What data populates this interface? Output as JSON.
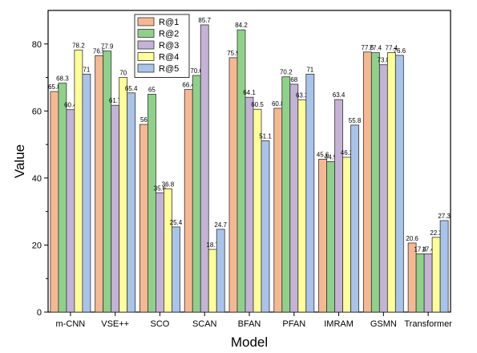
{
  "chart_data": {
    "type": "bar",
    "xlabel": "Model",
    "ylabel": "Value",
    "ylim": [
      0,
      90
    ],
    "yticks": [
      0,
      20,
      40,
      60,
      80
    ],
    "legend_position": "top-center",
    "categories": [
      "m-CNN",
      "VSE++",
      "SCO",
      "SCAN",
      "BFAN",
      "PFAN",
      "IMRAM",
      "GSMN",
      "Transformer"
    ],
    "series": [
      {
        "name": "R@1",
        "color": "#F6B893",
        "values": [
          65.8,
          76.5,
          56,
          66.4,
          75.9,
          60.8,
          45.6,
          77.6,
          20.6
        ]
      },
      {
        "name": "R@2",
        "color": "#8FD18A",
        "values": [
          68.3,
          77.9,
          65,
          70.6,
          84.2,
          70.2,
          44.9,
          77.4,
          17.4
        ]
      },
      {
        "name": "R@3",
        "color": "#C4B3D6",
        "values": [
          60.4,
          61.7,
          35.6,
          85.7,
          64.1,
          68,
          63.4,
          73.8,
          17.4
        ]
      },
      {
        "name": "R@4",
        "color": "#FFFF99",
        "values": [
          78.2,
          70,
          36.8,
          18.7,
          60.5,
          63.3,
          46.2,
          77.4,
          22.3
        ]
      },
      {
        "name": "R@5",
        "color": "#A9C4EB",
        "values": [
          71,
          65.4,
          25.4,
          24.7,
          51.1,
          71,
          55.8,
          76.6,
          27.3
        ]
      }
    ],
    "data_labels": [
      [
        "65.8",
        "68.3",
        "60.4",
        "78.2",
        "71"
      ],
      [
        "76.5",
        "77.9",
        "61.7",
        "70",
        "65.4"
      ],
      [
        "56",
        "65",
        "35.6",
        "36.8",
        "25.4"
      ],
      [
        "66.4",
        "70.6",
        "85.7",
        "18.7",
        "24.7"
      ],
      [
        "75.9",
        "84.2",
        "64.1",
        "60.5",
        "51.1"
      ],
      [
        "60.8",
        "70.2",
        "68",
        "63.3",
        "71"
      ],
      [
        "45.6",
        "44.9",
        "63.4",
        "46.2",
        "55.8"
      ],
      [
        "77.6",
        "77.4",
        "73.8",
        "77.4",
        "76.6"
      ],
      [
        "20.6",
        "17.4",
        "17.4",
        "22.3",
        "27.3"
      ]
    ]
  }
}
